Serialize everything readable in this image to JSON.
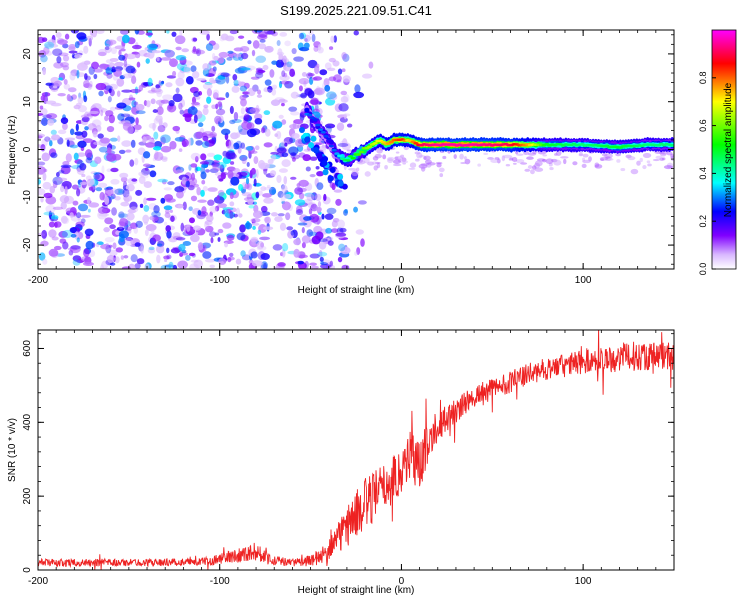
{
  "figure": {
    "title": "S199.2025.221.09.51.C41"
  },
  "chart_data": [
    {
      "type": "heatmap",
      "xlabel": "Height of straight line (km)",
      "ylabel": "Frequency (Hz)",
      "xlim": [
        -200,
        150
      ],
      "ylim": [
        -25,
        25
      ],
      "x_ticks": [
        -200,
        -100,
        0,
        100
      ],
      "y_ticks": [
        -20,
        -10,
        0,
        10,
        20
      ],
      "colorbar": {
        "label": "Normalized spectral amplitude",
        "range": [
          0.0,
          1.0
        ],
        "ticks": [
          "0.0",
          "0.2",
          "0.4",
          "0.6",
          "0.8"
        ],
        "stops": [
          "#ffffff",
          "#d9b8ff",
          "#8000ff",
          "#0000ff",
          "#00ffff",
          "#00ff00",
          "#ffff00",
          "#ff0000",
          "#ff00ff"
        ]
      },
      "ridge": [
        {
          "x": -52,
          "y": 8,
          "v": 0.3
        },
        {
          "x": -48,
          "y": 6,
          "v": 0.25
        },
        {
          "x": -44,
          "y": 4,
          "v": 0.3
        },
        {
          "x": -40,
          "y": 2,
          "v": 0.25
        },
        {
          "x": -36,
          "y": -1,
          "v": 0.3
        },
        {
          "x": -32,
          "y": -2,
          "v": 0.45
        },
        {
          "x": -28,
          "y": -2,
          "v": 0.5
        },
        {
          "x": -24,
          "y": -1,
          "v": 0.55
        },
        {
          "x": -20,
          "y": 0,
          "v": 0.6
        },
        {
          "x": -16,
          "y": 1,
          "v": 0.65
        },
        {
          "x": -12,
          "y": 2,
          "v": 0.7
        },
        {
          "x": -8,
          "y": 1,
          "v": 0.75
        },
        {
          "x": -4,
          "y": 2,
          "v": 0.8
        },
        {
          "x": 0,
          "y": 2,
          "v": 0.85
        },
        {
          "x": 4,
          "y": 2,
          "v": 0.7
        },
        {
          "x": 10,
          "y": 1,
          "v": 0.9
        },
        {
          "x": 20,
          "y": 1,
          "v": 0.95
        },
        {
          "x": 40,
          "y": 1,
          "v": 0.95
        },
        {
          "x": 60,
          "y": 1,
          "v": 0.9
        },
        {
          "x": 70,
          "y": 1,
          "v": 0.75
        },
        {
          "x": 80,
          "y": 1,
          "v": 0.5
        },
        {
          "x": 100,
          "y": 1,
          "v": 0.45
        },
        {
          "x": 120,
          "y": 0.5,
          "v": 0.5
        },
        {
          "x": 135,
          "y": 1,
          "v": 0.45
        },
        {
          "x": 150,
          "y": 1,
          "v": 0.45
        }
      ],
      "noise_region": {
        "x": [
          -200,
          -30
        ],
        "y": [
          -25,
          25
        ],
        "value_range": [
          0.05,
          0.35
        ]
      }
    },
    {
      "type": "line",
      "xlabel": "Height of straight line (km)",
      "ylabel": "SNR (10 * v/v)",
      "xlim": [
        -200,
        150
      ],
      "ylim": [
        0,
        650
      ],
      "x_ticks": [
        -200,
        -100,
        0,
        100
      ],
      "y_ticks": [
        0,
        200,
        400,
        600
      ],
      "series": [
        {
          "name": "SNR",
          "color": "#ee2222",
          "trend_x": [
            -200,
            -150,
            -110,
            -100,
            -90,
            -80,
            -70,
            -60,
            -50,
            -40,
            -30,
            -20,
            -10,
            0,
            5,
            10,
            15,
            20,
            30,
            40,
            50,
            60,
            70,
            80,
            90,
            100,
            110,
            120,
            130,
            140,
            150
          ],
          "trend_y": [
            20,
            20,
            22,
            30,
            40,
            50,
            25,
            20,
            25,
            50,
            120,
            180,
            220,
            270,
            320,
            280,
            350,
            390,
            430,
            470,
            490,
            510,
            530,
            545,
            555,
            565,
            570,
            575,
            580,
            580,
            580
          ],
          "noise_amplitude": [
            10,
            10,
            10,
            15,
            20,
            25,
            15,
            10,
            15,
            30,
            60,
            70,
            70,
            60,
            80,
            70,
            50,
            40,
            35,
            30,
            30,
            30,
            30,
            30,
            30,
            35,
            35,
            40,
            40,
            40,
            40
          ]
        }
      ]
    }
  ]
}
